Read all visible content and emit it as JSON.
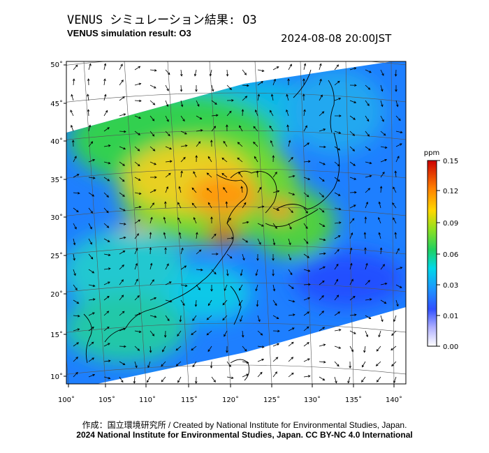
{
  "header": {
    "title_jp": "VENUS シミュレーション結果: O3",
    "title_en": "VENUS simulation result: O3",
    "timestamp": "2024-08-08 20:00JST"
  },
  "map": {
    "lat_labels": [
      "50˚",
      "45˚",
      "40˚",
      "35˚",
      "30˚",
      "25˚",
      "20˚",
      "15˚",
      "10˚"
    ],
    "lat_values": [
      50,
      45,
      40,
      35,
      30,
      25,
      20,
      15,
      10
    ],
    "lon_labels": [
      "100˚",
      "105˚",
      "110˚",
      "115˚",
      "120˚",
      "125˚",
      "130˚",
      "135˚",
      "140˚"
    ],
    "lon_values": [
      100,
      105,
      110,
      115,
      120,
      125,
      130,
      135,
      140
    ]
  },
  "colorbar": {
    "unit": "ppm",
    "ticks": [
      "0.15",
      "0.12",
      "0.09",
      "0.06",
      "0.03",
      "0.01",
      "0.00"
    ],
    "colors": [
      "#ffffff",
      "#a0a0ff",
      "#2040ff",
      "#1e90ff",
      "#00e0e0",
      "#20d060",
      "#a0e020",
      "#ffd000",
      "#ff8000",
      "#e00000",
      "#c00000"
    ]
  },
  "footer": {
    "credit_jp": "作成：国立環境研究所 / Created by National Institute for Environmental Studies, Japan.",
    "copyright": "2024 National Institute for Environmental Studies, Japan. CC BY-NC 4.0 International"
  }
}
